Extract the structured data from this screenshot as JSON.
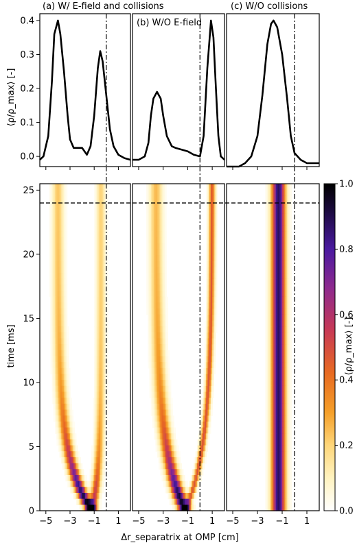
{
  "chart_data": {
    "type": "heatmap",
    "panels": [
      {
        "title": "(a) W/ E-field and collisions",
        "profile": [
          [
            -5.5,
            -0.01
          ],
          [
            -5.2,
            0.0
          ],
          [
            -4.8,
            0.06
          ],
          [
            -4.5,
            0.22
          ],
          [
            -4.3,
            0.36
          ],
          [
            -4.0,
            0.4
          ],
          [
            -3.8,
            0.36
          ],
          [
            -3.5,
            0.25
          ],
          [
            -3.2,
            0.12
          ],
          [
            -3.0,
            0.05
          ],
          [
            -2.7,
            0.025
          ],
          [
            -2.3,
            0.025
          ],
          [
            -2.0,
            0.025
          ],
          [
            -1.6,
            0.005
          ],
          [
            -1.3,
            0.03
          ],
          [
            -1.0,
            0.12
          ],
          [
            -0.7,
            0.26
          ],
          [
            -0.5,
            0.31
          ],
          [
            -0.3,
            0.28
          ],
          [
            0.0,
            0.18
          ],
          [
            0.3,
            0.08
          ],
          [
            0.6,
            0.03
          ],
          [
            1.0,
            0.005
          ],
          [
            1.5,
            -0.005
          ],
          [
            2.0,
            -0.01
          ]
        ],
        "map": {
          "ridges": [
            {
              "x0": -1.2,
              "x1": -4.0,
              "tau": 4.0,
              "width": 0.45,
              "amp_start": 1.0,
              "amp_end": 0.45,
              "tau_amp": 5.0
            },
            {
              "x0": -1.2,
              "x1": -0.45,
              "tau": 3.0,
              "width": 0.35,
              "amp_start": 0.6,
              "amp_end": 0.4,
              "tau_amp": 4.0
            }
          ],
          "fade_in": 2.0
        }
      },
      {
        "title": "(b) W/O E-field",
        "profile": [
          [
            -5.5,
            -0.01
          ],
          [
            -5.0,
            -0.01
          ],
          [
            -4.5,
            0.0
          ],
          [
            -4.2,
            0.04
          ],
          [
            -4.0,
            0.12
          ],
          [
            -3.8,
            0.17
          ],
          [
            -3.5,
            0.19
          ],
          [
            -3.2,
            0.17
          ],
          [
            -3.0,
            0.12
          ],
          [
            -2.7,
            0.06
          ],
          [
            -2.3,
            0.03
          ],
          [
            -2.0,
            0.025
          ],
          [
            -1.5,
            0.02
          ],
          [
            -1.0,
            0.015
          ],
          [
            -0.5,
            0.005
          ],
          [
            0.0,
            0.0
          ],
          [
            0.3,
            0.06
          ],
          [
            0.6,
            0.26
          ],
          [
            0.9,
            0.4
          ],
          [
            1.1,
            0.35
          ],
          [
            1.3,
            0.2
          ],
          [
            1.5,
            0.06
          ],
          [
            1.7,
            0.0
          ],
          [
            2.0,
            -0.01
          ]
        ],
        "map": {
          "ridges": [
            {
              "x0": -1.2,
              "x1": -3.6,
              "tau": 5.0,
              "width": 0.5,
              "amp_start": 1.0,
              "amp_end": 0.5,
              "tau_amp": 5.0
            },
            {
              "x0": -1.2,
              "x1": 1.0,
              "tau": 5.0,
              "width": 0.25,
              "amp_start": 0.4,
              "amp_end": 0.9,
              "tau_amp": 8.0
            }
          ],
          "fade_in": 1.5
        }
      },
      {
        "title": "(c) W/O  collisions",
        "profile": [
          [
            -5.5,
            -0.03
          ],
          [
            -5.0,
            -0.03
          ],
          [
            -4.5,
            -0.03
          ],
          [
            -4.0,
            -0.02
          ],
          [
            -3.5,
            0.0
          ],
          [
            -3.0,
            0.06
          ],
          [
            -2.6,
            0.18
          ],
          [
            -2.2,
            0.33
          ],
          [
            -1.9,
            0.39
          ],
          [
            -1.7,
            0.4
          ],
          [
            -1.4,
            0.38
          ],
          [
            -1.0,
            0.3
          ],
          [
            -0.6,
            0.17
          ],
          [
            -0.3,
            0.06
          ],
          [
            0.0,
            0.01
          ],
          [
            0.5,
            -0.01
          ],
          [
            1.0,
            -0.02
          ],
          [
            2.0,
            -0.02
          ]
        ],
        "map": {
          "ridges": [
            {
              "x0": -1.3,
              "x1": -1.3,
              "tau": 1.0,
              "width": 0.55,
              "amp_start": 0.85,
              "amp_end": 0.85,
              "tau_amp": 1.0
            }
          ],
          "fade_in": 0.0
        }
      }
    ],
    "x_ticks": [
      -5,
      -3,
      -1,
      1
    ],
    "xlim": [
      -5.5,
      2.0
    ],
    "xlabel": "Δr_separatrix at OMP [cm]",
    "profile_ylabel": "⟨ρ/ρ_max⟩ [-]",
    "profile_ylim": [
      -0.03,
      0.42
    ],
    "profile_yticks": [
      "0.0",
      "0.1",
      "0.2",
      "0.3",
      "0.4"
    ],
    "time_ylabel": "time [ms]",
    "time_ylim": [
      0,
      25.5
    ],
    "time_yticks": [
      "0",
      "5",
      "10",
      "15",
      "20",
      "25"
    ],
    "separatrix_x": 0.0,
    "time_marker": 24,
    "colorbar": {
      "label": "⟨ρ/ρ_max⟩ [-]",
      "ticks": [
        "0.0",
        "0.2",
        "0.4",
        "0.6",
        "0.8",
        "1.0"
      ],
      "range": [
        0,
        1
      ],
      "colormap": [
        "#ffffff",
        "#fff3c0",
        "#fed67a",
        "#f5a02a",
        "#e86b22",
        "#c83a55",
        "#8e2a8e",
        "#4a1aa0",
        "#1a0a3c",
        "#000000"
      ]
    }
  }
}
